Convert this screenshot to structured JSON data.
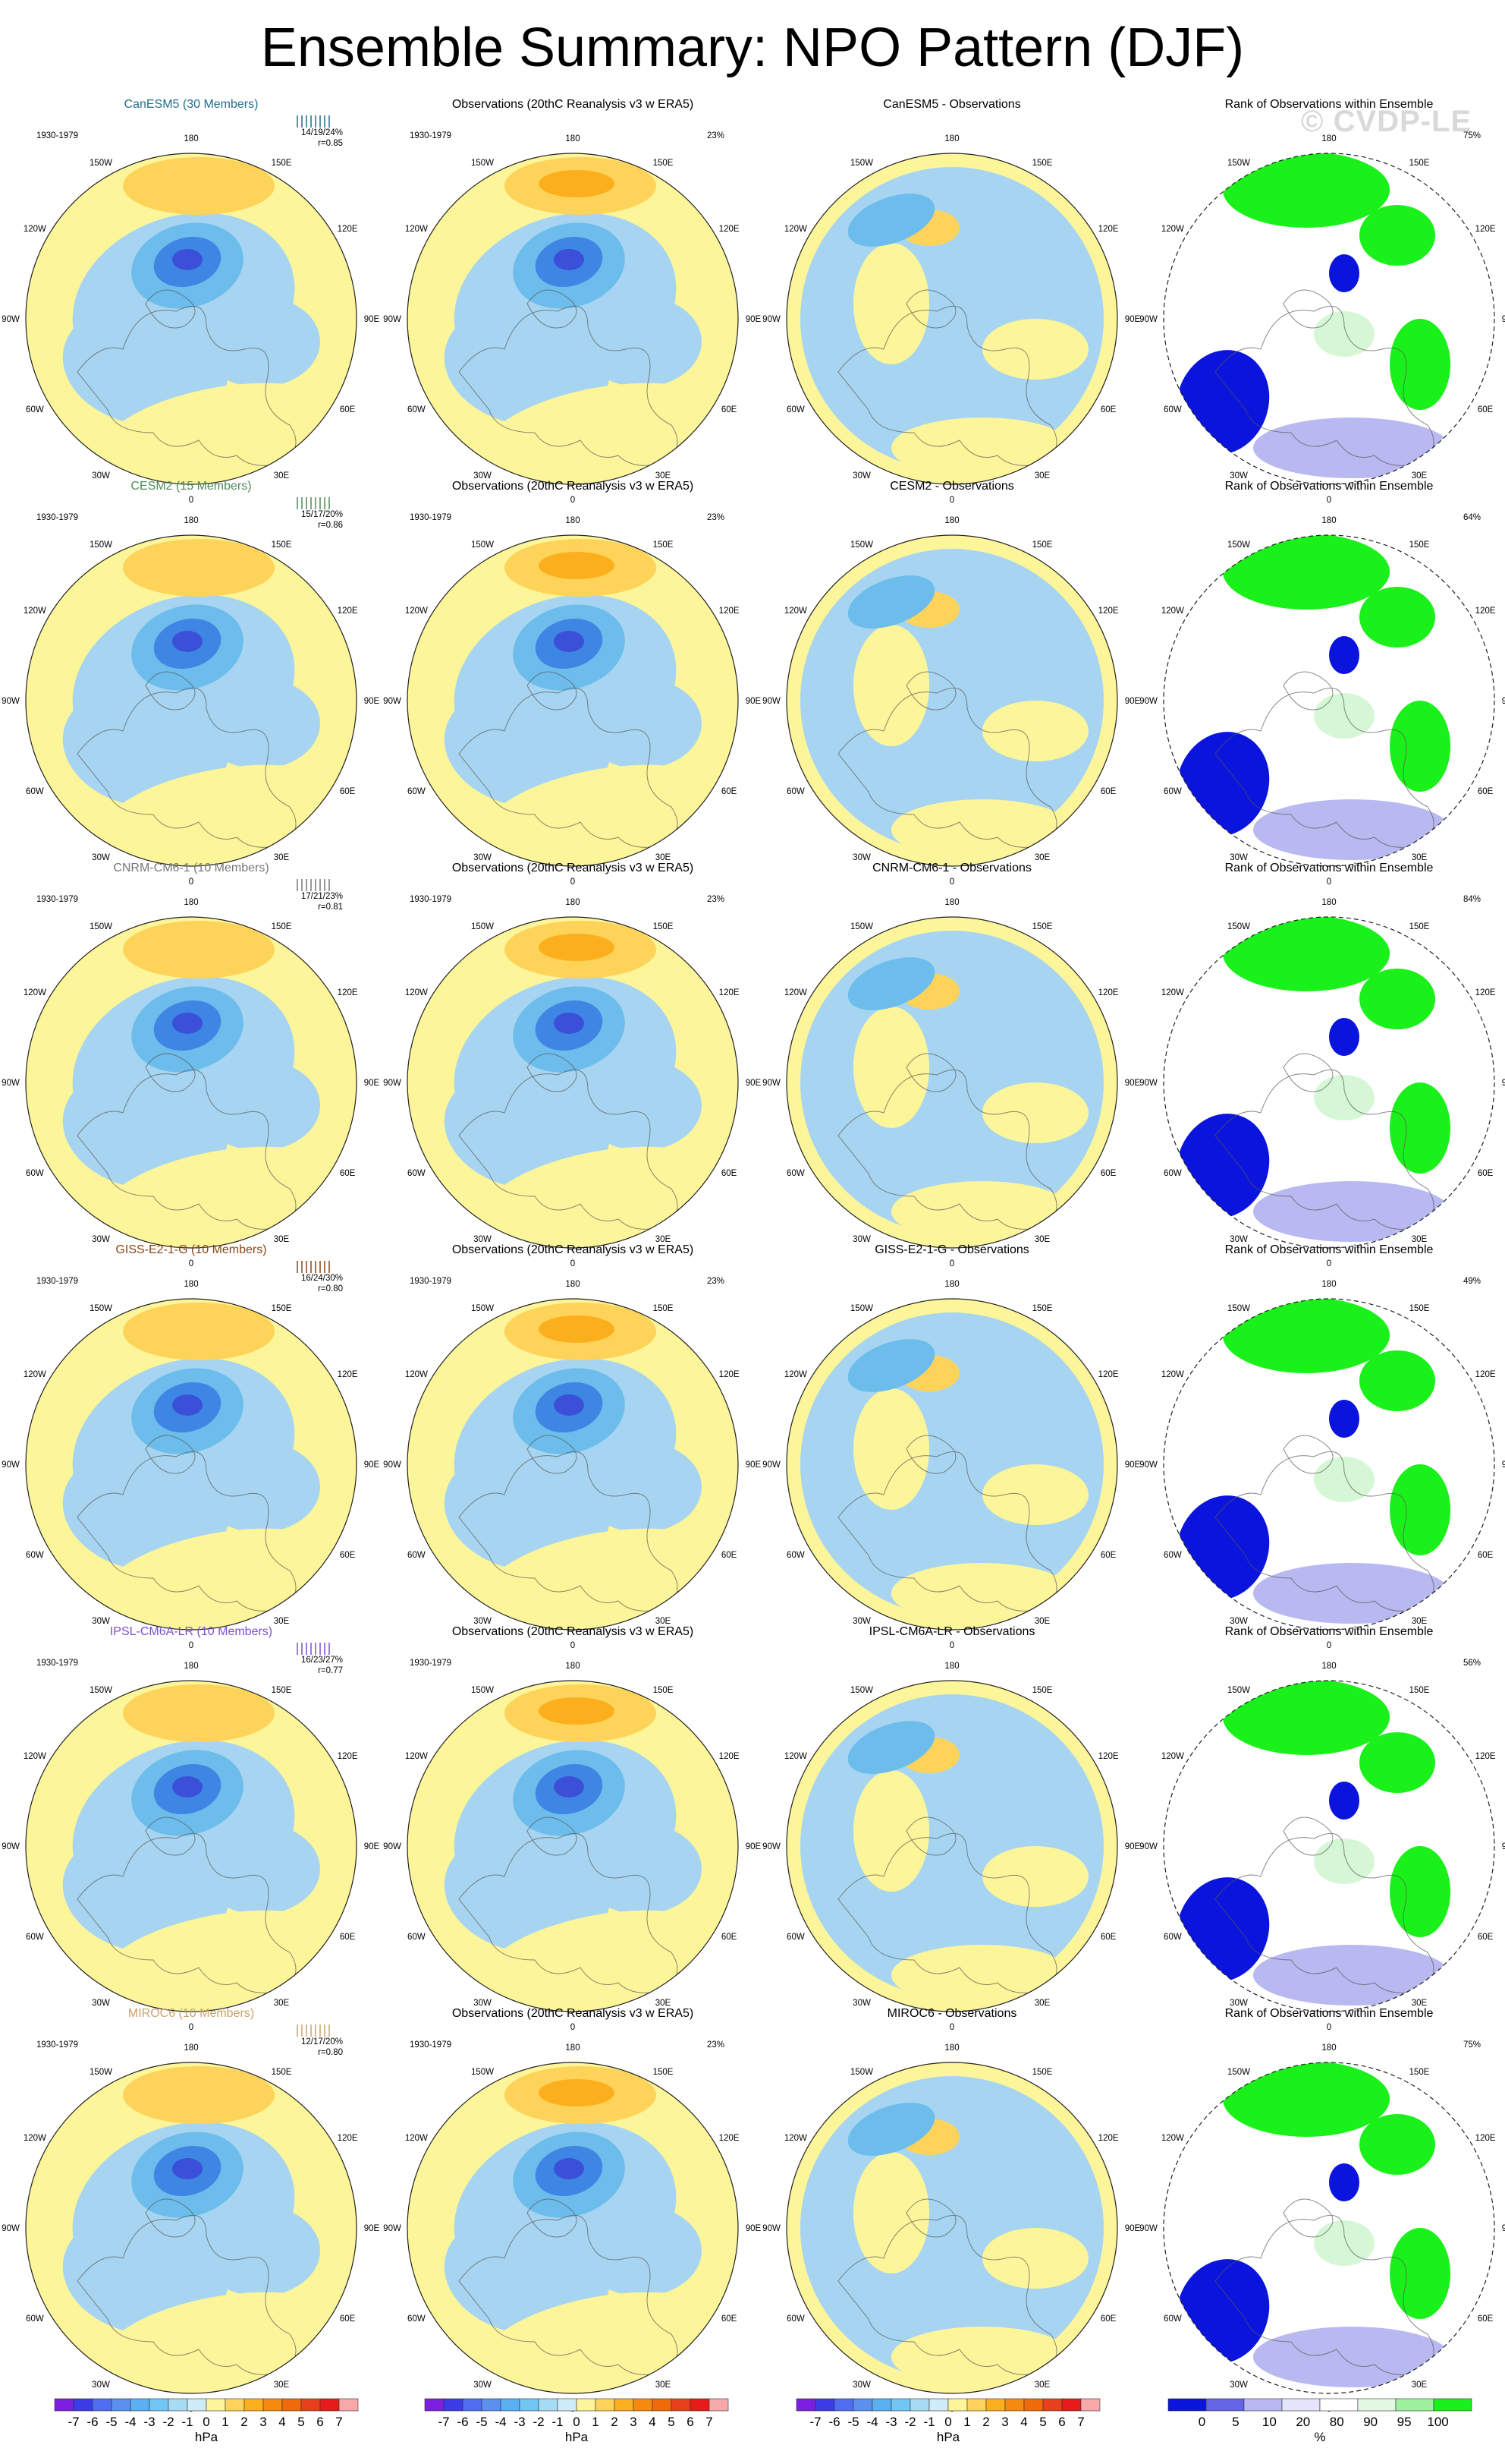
{
  "title": "Ensemble Summary: NPO Pattern (DJF)",
  "watermark": "© CVDP-LE",
  "colors": {
    "yellow": "#fdf59a",
    "light_blue": "#a7d5f1",
    "mid_blue": "#6cbcec",
    "deep_blue": "#3d86e3",
    "core_blue": "#3b4fd8",
    "orange_light": "#fed35a",
    "orange_mid": "#fcaf1c",
    "orange_deep": "#f08a10",
    "rank_green": "#1af01a",
    "rank_pale_green": "#d6f7d6",
    "rank_blue": "#0a14dc",
    "rank_light_blue": "#b9b9f2"
  },
  "longitude_labels": [
    "180",
    "150E",
    "120E",
    "90E",
    "60E",
    "30E",
    "0",
    "30W",
    "60W",
    "90W",
    "120W",
    "150W"
  ],
  "columns": [
    {
      "id": "model",
      "title": ""
    },
    {
      "id": "obs",
      "title": "Observations (20thC Reanalysis v3 w ERA5)"
    },
    {
      "id": "diff",
      "title": ""
    },
    {
      "id": "rank",
      "title": "Rank of Observations within Ensemble"
    }
  ],
  "rows": [
    {
      "model": "CanESM5 (30 Members)",
      "model_color": "#1f6e8c",
      "period": "1930-1979",
      "stats": "14/19/24%",
      "corr": "r=0.85",
      "obs_pct": "23%",
      "diff_title": "CanESM5 - Observations",
      "rank_pct": "75%"
    },
    {
      "model": "CESM2 (15 Members)",
      "model_color": "#4d8a57",
      "period": "1930-1979",
      "stats": "15/17/20%",
      "corr": "r=0.86",
      "obs_pct": "23%",
      "diff_title": "CESM2 - Observations",
      "rank_pct": "64%"
    },
    {
      "model": "CNRM-CM6-1 (10 Members)",
      "model_color": "#777777",
      "period": "1930-1979",
      "stats": "17/21/23%",
      "corr": "r=0.81",
      "obs_pct": "23%",
      "diff_title": "CNRM-CM6-1 - Observations",
      "rank_pct": "84%"
    },
    {
      "model": "GISS-E2-1-G (10 Members)",
      "model_color": "#8b4513",
      "period": "1930-1979",
      "stats": "16/24/30%",
      "corr": "r=0.80",
      "obs_pct": "23%",
      "diff_title": "GISS-E2-1-G - Observations",
      "rank_pct": "49%"
    },
    {
      "model": "IPSL-CM6A-LR (10 Members)",
      "model_color": "#7a4fd0",
      "period": "1930-1979",
      "stats": "16/23/27%",
      "corr": "r=0.77",
      "obs_pct": "",
      "diff_title": "IPSL-CM6A-LR - Observations",
      "rank_pct": "56%"
    },
    {
      "model": "MIROC6 (10 Members)",
      "model_color": "#c8a36a",
      "period": "1930-1979",
      "stats": "12/17/20%",
      "corr": "r=0.80",
      "obs_pct": "23%",
      "diff_title": "MIROC6 - Observations",
      "rank_pct": "75%"
    }
  ],
  "pressure_colorbar": {
    "unit": "hPa",
    "tick_labels": [
      "-7",
      "-6",
      "-5",
      "-4",
      "-3",
      "-2",
      "-1",
      "0",
      "1",
      "2",
      "3",
      "4",
      "5",
      "6",
      "7"
    ],
    "colors": [
      "#7b1fe0",
      "#3b3be8",
      "#4f6df0",
      "#5b8ff0",
      "#5ab0f0",
      "#72c6f3",
      "#a8dcf5",
      "#d0ecf8",
      "#fdf59a",
      "#fed35a",
      "#fcaf1c",
      "#f58a0f",
      "#f06a0a",
      "#e8401a",
      "#e81a1a",
      "#f7a8a8"
    ]
  },
  "rank_colorbar": {
    "unit": "%",
    "tick_labels": [
      "0",
      "5",
      "10",
      "20",
      "80",
      "90",
      "95",
      "100"
    ],
    "colors": [
      "#0a14dc",
      "#6464e6",
      "#b9b9f2",
      "#e4e4fa",
      "#ffffff",
      "#e4f9e4",
      "#9ef29e",
      "#1af01a"
    ]
  }
}
